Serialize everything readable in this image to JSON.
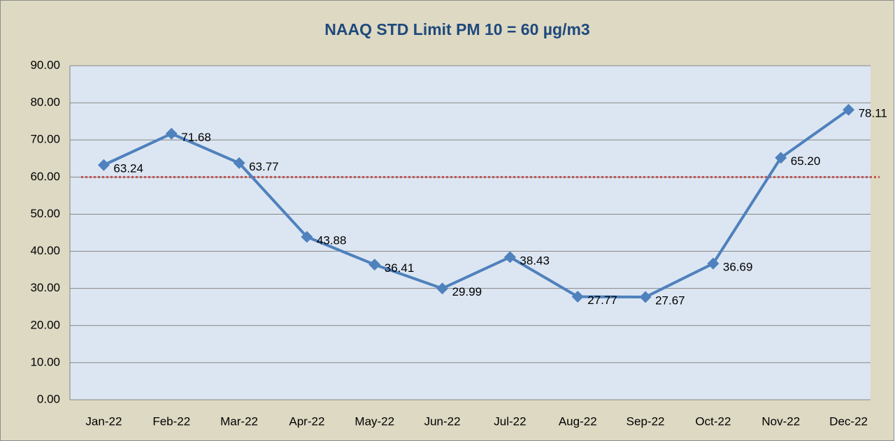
{
  "chart_data": {
    "type": "line",
    "title": "NAAQ STD Limit PM 10 = 60 µg/m3",
    "categories": [
      "Jan-22",
      "Feb-22",
      "Mar-22",
      "Apr-22",
      "May-22",
      "Jun-22",
      "Jul-22",
      "Aug-22",
      "Sep-22",
      "Oct-22",
      "Nov-22",
      "Dec-22"
    ],
    "series": [
      {
        "name": "PM 10",
        "color": "#4f81bd",
        "values": [
          63.24,
          71.68,
          63.77,
          43.88,
          36.41,
          29.99,
          38.43,
          27.77,
          27.67,
          36.69,
          65.2,
          78.11
        ],
        "value_labels": [
          "63.24",
          "71.68",
          "63.77",
          "43.88",
          "36.41",
          "29.99",
          "38.43",
          "27.77",
          "27.67",
          "36.69",
          "65.20",
          "78.11"
        ]
      }
    ],
    "reference_line": {
      "value": 60,
      "color": "#c0504d"
    },
    "ylim": [
      0,
      90
    ],
    "yticks": [
      {
        "value": 0,
        "label": "0.00"
      },
      {
        "value": 10,
        "label": "10.00"
      },
      {
        "value": 20,
        "label": "20.00"
      },
      {
        "value": 30,
        "label": "30.00"
      },
      {
        "value": 40,
        "label": "40.00"
      },
      {
        "value": 50,
        "label": "50.00"
      },
      {
        "value": 60,
        "label": "60.00"
      },
      {
        "value": 70,
        "label": "70.00"
      },
      {
        "value": 80,
        "label": "80.00"
      },
      {
        "value": 90,
        "label": "90.00"
      }
    ],
    "grid": true
  }
}
